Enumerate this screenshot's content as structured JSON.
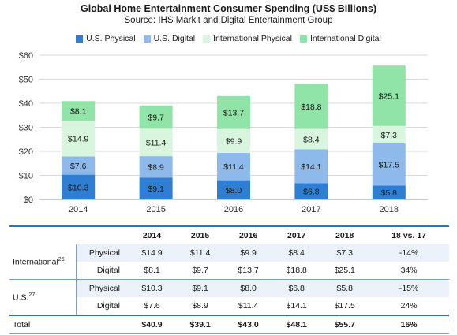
{
  "chart_data": {
    "type": "bar",
    "stacked": true,
    "title": "Global Home Entertainment Consumer Spending (US$ Billions)",
    "subtitle": "Source: IHS Markit and Digital Entertainment Group",
    "categories": [
      "2014",
      "2015",
      "2016",
      "2017",
      "2018"
    ],
    "series": [
      {
        "name": "U.S. Physical",
        "color": "#2e7fd4",
        "values": [
          10.3,
          9.1,
          8.0,
          6.8,
          5.8
        ],
        "labels": [
          "$10.3",
          "$9.1",
          "$8.0",
          "$6.8",
          "$5.8"
        ]
      },
      {
        "name": "U.S. Digital",
        "color": "#8dbaeb",
        "values": [
          7.6,
          8.9,
          11.4,
          14.1,
          17.5
        ],
        "labels": [
          "$7.6",
          "$8.9",
          "$11.4",
          "$14.1",
          "$17.5"
        ]
      },
      {
        "name": "International Physical",
        "color": "#d8f5de",
        "values": [
          14.9,
          11.4,
          9.9,
          8.4,
          7.3
        ],
        "labels": [
          "$14.9",
          "$11.4",
          "$9.9",
          "$8.4",
          "$7.3"
        ]
      },
      {
        "name": "International Digital",
        "color": "#90e4a8",
        "values": [
          8.1,
          9.7,
          13.7,
          18.8,
          25.1
        ],
        "labels": [
          "$8.1",
          "$9.7",
          "$13.7",
          "$18.8",
          "$25.1"
        ]
      }
    ],
    "ylim": [
      0,
      60
    ],
    "yticks": [
      0,
      10,
      20,
      30,
      40,
      50,
      60
    ],
    "ytick_labels": [
      "$0",
      "$10",
      "$20",
      "$30",
      "$40",
      "$50",
      "$60"
    ],
    "grid": true,
    "legend": "top"
  },
  "table": {
    "headers": [
      "",
      "",
      "2014",
      "2015",
      "2016",
      "2017",
      "2018",
      "18 vs. 17"
    ],
    "groups": [
      {
        "label": "International",
        "note": "26",
        "rows": [
          {
            "label": "Physical",
            "cells": [
              "$14.9",
              "$11.4",
              "$9.9",
              "$8.4",
              "$7.3",
              "-14%"
            ]
          },
          {
            "label": "Digital",
            "cells": [
              "$8.1",
              "$9.7",
              "$13.7",
              "$18.8",
              "$25.1",
              "34%"
            ]
          }
        ]
      },
      {
        "label": "U.S.",
        "note": "27",
        "rows": [
          {
            "label": "Physical",
            "cells": [
              "$10.3",
              "$9.1",
              "$8.0",
              "$6.8",
              "$5.8",
              "-15%"
            ]
          },
          {
            "label": "Digital",
            "cells": [
              "$7.6",
              "$8.9",
              "$11.4",
              "$14.1",
              "$17.5",
              "24%"
            ]
          }
        ]
      }
    ],
    "total": {
      "label": "Total",
      "cells": [
        "$40.9",
        "$39.1",
        "$43.0",
        "$48.1",
        "$55.7",
        "16%"
      ]
    }
  }
}
